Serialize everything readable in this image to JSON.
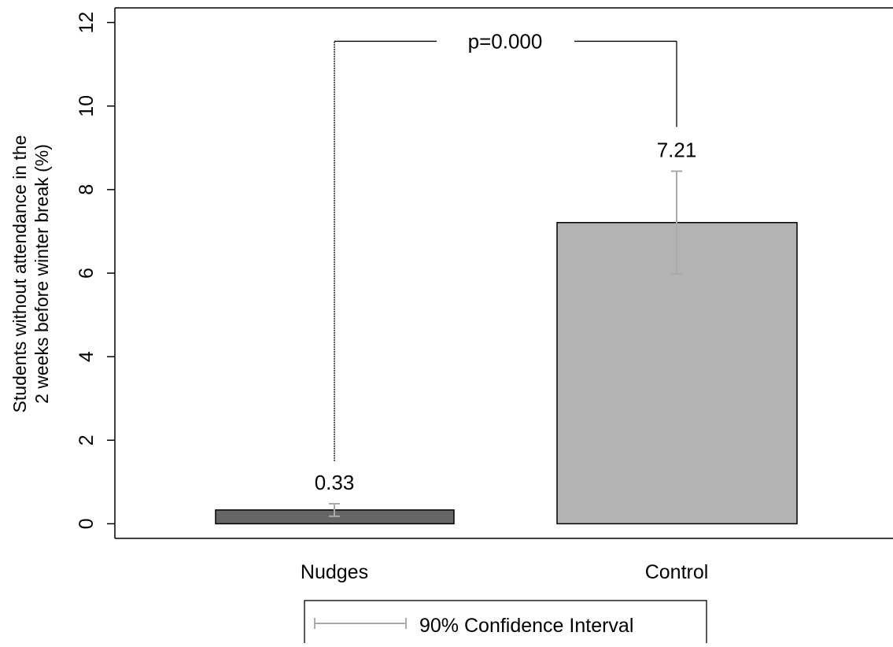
{
  "chart_data": {
    "type": "bar",
    "categories": [
      "Nudges",
      "Control"
    ],
    "values": [
      0.33,
      7.21
    ],
    "value_labels": [
      "0.33",
      "7.21"
    ],
    "ci_90": [
      [
        0.18,
        0.48
      ],
      [
        5.98,
        8.44
      ]
    ],
    "bar_colors": [
      "#666666",
      "#b3b3b3"
    ],
    "ci_color": "#aaaaaa",
    "ylabel_lines": [
      "Students without attendance in the",
      "2 weeks before winter break (%)"
    ],
    "yticks": [
      0,
      2,
      4,
      6,
      8,
      10,
      12
    ],
    "ytick_labels": [
      "0",
      "2",
      "4",
      "6",
      "8",
      "10",
      "12"
    ],
    "ylim": [
      -0.35,
      12.35
    ],
    "grid": false,
    "significance": {
      "label": "p=0.000",
      "bracket_level": 11.55,
      "left_drop_to": 1.5,
      "right_drop_to": 9.5
    },
    "legend": {
      "position": "bottom",
      "entries": [
        "90% Confidence Interval"
      ]
    }
  }
}
